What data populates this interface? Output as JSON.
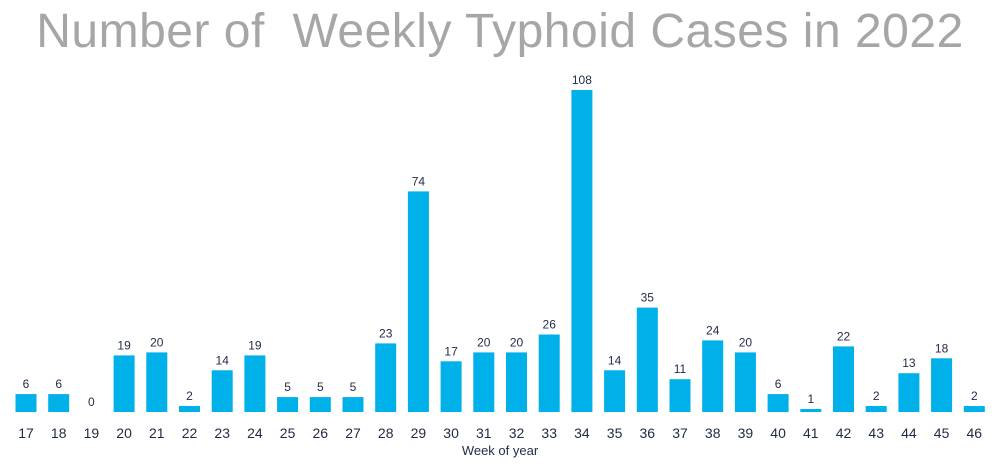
{
  "title": "Number of  Weekly Typhoid Cases in 2022",
  "chart_data": {
    "type": "bar",
    "title": "Number of  Weekly Typhoid Cases in 2022",
    "xlabel": "Week of year",
    "ylabel": "",
    "categories": [
      "17",
      "18",
      "19",
      "20",
      "21",
      "22",
      "23",
      "24",
      "25",
      "26",
      "27",
      "28",
      "29",
      "30",
      "31",
      "32",
      "33",
      "34",
      "35",
      "36",
      "37",
      "38",
      "39",
      "40",
      "41",
      "42",
      "43",
      "44",
      "45",
      "46"
    ],
    "values": [
      6,
      6,
      0,
      19,
      20,
      2,
      14,
      19,
      5,
      5,
      5,
      23,
      74,
      17,
      20,
      20,
      26,
      108,
      14,
      35,
      11,
      24,
      20,
      6,
      1,
      22,
      2,
      13,
      18,
      2
    ],
    "ylim": [
      0,
      108
    ],
    "bar_color": "#00b0e8",
    "grid": false,
    "legend": "none"
  }
}
